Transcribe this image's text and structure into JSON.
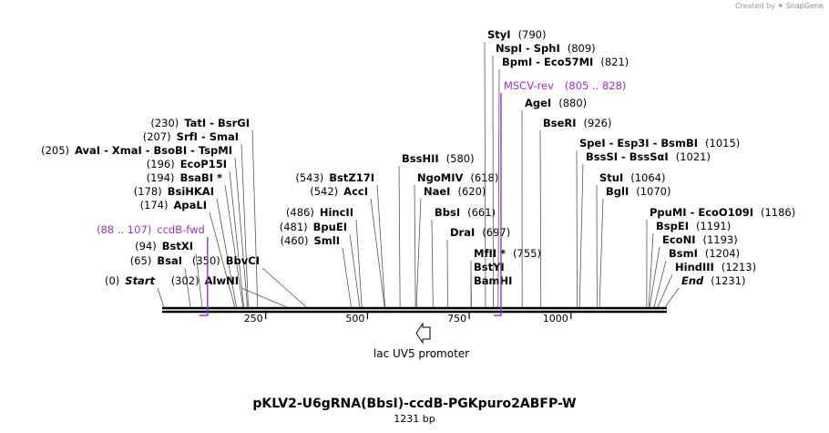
{
  "credit": {
    "prefix": "Created by",
    "brand": "SnapGene"
  },
  "title": "pKLV2-U6gRNA(BbsI)-ccdB-PGKpuro2ABFP-W",
  "length_label": "1231 bp",
  "total_bp": 1231,
  "feature": {
    "name": "lac UV5 promoter"
  },
  "primers": [
    {
      "name": "ccdB-fwd",
      "range": "(88 .. 107)",
      "pos": 107,
      "side": "left"
    },
    {
      "name": "MSCV-rev",
      "range": "(805 .. 828)",
      "pos": 828,
      "side": "right"
    }
  ],
  "ticks": [
    {
      "label": "250",
      "pos": 250
    },
    {
      "label": "500",
      "pos": 500
    },
    {
      "label": "750",
      "pos": 750
    },
    {
      "label": "1000",
      "pos": 1000
    }
  ],
  "sites": [
    {
      "name": "Start",
      "coord": "(0)",
      "pos": 0,
      "side": "left",
      "style": "italic"
    },
    {
      "name": "BsaI",
      "coord": "(65)",
      "pos": 65,
      "side": "left"
    },
    {
      "name": "BstXI",
      "coord": "(94)",
      "pos": 94,
      "side": "left"
    },
    {
      "name": "ApaLI",
      "coord": "(174)",
      "pos": 174,
      "side": "left"
    },
    {
      "name": "BsiHKAI",
      "coord": "(178)",
      "pos": 178,
      "side": "left"
    },
    {
      "name": "BsaBI *",
      "coord": "(194)",
      "pos": 194,
      "side": "left"
    },
    {
      "name": "EcoP15I",
      "coord": "(196)",
      "pos": 196,
      "side": "left"
    },
    {
      "name": "AvaI  - XmaI  - BsoBI  - TspMI",
      "coord": "(205)",
      "pos": 205,
      "side": "left"
    },
    {
      "name": "SrfI  - SmaI",
      "coord": "(207)",
      "pos": 207,
      "side": "left"
    },
    {
      "name": "TatI  - BsrGI",
      "coord": "(230)",
      "pos": 230,
      "side": "left"
    },
    {
      "name": "AlwNI",
      "coord": "(302)",
      "pos": 302,
      "side": "left"
    },
    {
      "name": "BbvCI",
      "coord": "(350)",
      "pos": 350,
      "side": "left"
    },
    {
      "name": "SmlI",
      "coord": "(460)",
      "pos": 460,
      "side": "left"
    },
    {
      "name": "BpuEI",
      "coord": "(481)",
      "pos": 481,
      "side": "left"
    },
    {
      "name": "HincII",
      "coord": "(486)",
      "pos": 486,
      "side": "left"
    },
    {
      "name": "AccI",
      "coord": "(542)",
      "pos": 542,
      "side": "left"
    },
    {
      "name": "BstZ17I",
      "coord": "(543)",
      "pos": 543,
      "side": "left"
    },
    {
      "name": "BssHII",
      "coord": "(580)",
      "pos": 580,
      "side": "right"
    },
    {
      "name": "NgoMIV",
      "coord": "(618)",
      "pos": 618,
      "side": "right"
    },
    {
      "name": "NaeI",
      "coord": "(620)",
      "pos": 620,
      "side": "right"
    },
    {
      "name": "BbsI",
      "coord": "(661)",
      "pos": 661,
      "side": "right"
    },
    {
      "name": "DraI",
      "coord": "(697)",
      "pos": 697,
      "side": "right"
    },
    {
      "name": "MfII *",
      "coord": "(755)",
      "pos": 755,
      "side": "right"
    },
    {
      "name": "BstYI",
      "coord": "",
      "pos": 755,
      "side": "right"
    },
    {
      "name": "BamHI",
      "coord": "",
      "pos": 755,
      "side": "right"
    },
    {
      "name": "StyI",
      "coord": "(790)",
      "pos": 790,
      "side": "right"
    },
    {
      "name": "NspI  - SphI",
      "coord": "(809)",
      "pos": 809,
      "side": "right"
    },
    {
      "name": "BpmI  - Eco57MI",
      "coord": "(821)",
      "pos": 821,
      "side": "right"
    },
    {
      "name": "AgeI",
      "coord": "(880)",
      "pos": 880,
      "side": "right"
    },
    {
      "name": "BseRI",
      "coord": "(926)",
      "pos": 926,
      "side": "right"
    },
    {
      "name": "SpeI  - Esp3I  - BsmBI",
      "coord": "(1015)",
      "pos": 1015,
      "side": "right"
    },
    {
      "name": "BssSI  - BssSαI",
      "coord": "(1021)",
      "pos": 1021,
      "side": "right"
    },
    {
      "name": "StuI",
      "coord": "(1064)",
      "pos": 1064,
      "side": "right"
    },
    {
      "name": "BglI",
      "coord": "(1070)",
      "pos": 1070,
      "side": "right"
    },
    {
      "name": "PpuMI  - EcoO109I",
      "coord": "(1186)",
      "pos": 1186,
      "side": "right"
    },
    {
      "name": "BspEI",
      "coord": "(1191)",
      "pos": 1191,
      "side": "right"
    },
    {
      "name": "EcoNI",
      "coord": "(1193)",
      "pos": 1193,
      "side": "right"
    },
    {
      "name": "BsmI",
      "coord": "(1204)",
      "pos": 1204,
      "side": "right"
    },
    {
      "name": "HindIII",
      "coord": "(1213)",
      "pos": 1213,
      "side": "right"
    },
    {
      "name": "End",
      "coord": "(1231)",
      "pos": 1231,
      "side": "right",
      "style": "italic"
    }
  ],
  "colors": {
    "primer": "#9b30d0",
    "line": "#000000",
    "tick_line": "#555555"
  }
}
